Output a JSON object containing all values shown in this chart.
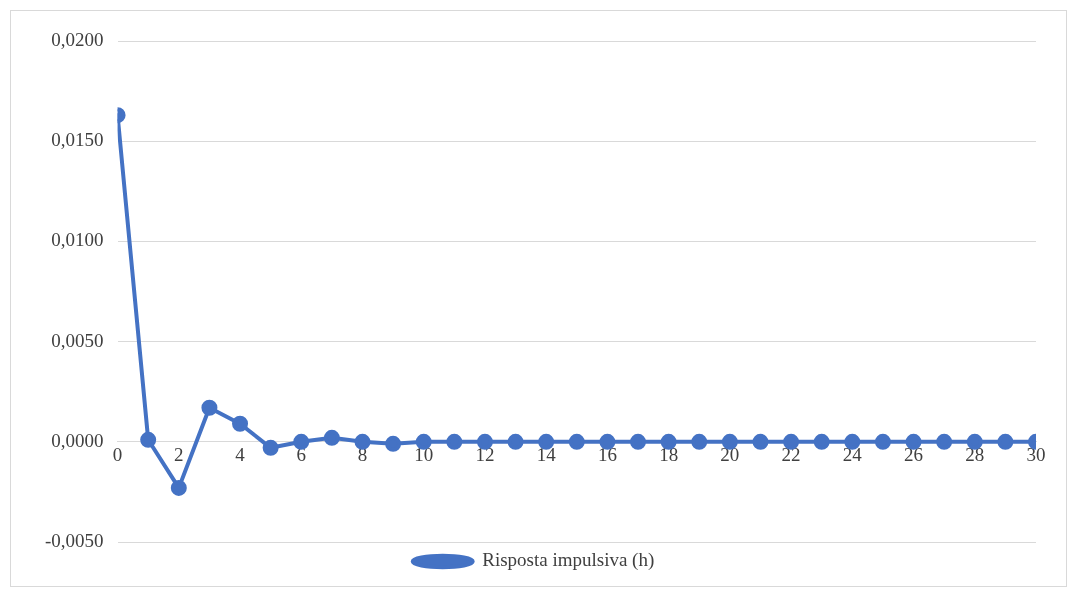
{
  "chart_data": {
    "type": "line",
    "x": [
      0,
      1,
      2,
      3,
      4,
      5,
      6,
      7,
      8,
      9,
      10,
      11,
      12,
      13,
      14,
      15,
      16,
      17,
      18,
      19,
      20,
      21,
      22,
      23,
      24,
      25,
      26,
      27,
      28,
      29,
      30
    ],
    "series": [
      {
        "name": "Risposta impulsiva (h)",
        "color": "#4472c4",
        "values": [
          0.0163,
          0.0001,
          -0.0023,
          0.0017,
          0.0009,
          -0.0003,
          0.0,
          0.0002,
          0.0,
          -0.0001,
          0,
          0,
          0,
          0,
          0,
          0,
          0,
          0,
          0,
          0,
          0,
          0,
          0,
          0,
          0,
          0,
          0,
          0,
          0,
          0,
          0
        ]
      }
    ],
    "xlim": [
      0,
      30
    ],
    "xticks": [
      0,
      2,
      4,
      6,
      8,
      10,
      12,
      14,
      16,
      18,
      20,
      22,
      24,
      26,
      28,
      30
    ],
    "ylim": [
      -0.005,
      0.02
    ],
    "yticks": [
      {
        "value": -0.005,
        "label": "-0,0050"
      },
      {
        "value": 0,
        "label": "0,0000"
      },
      {
        "value": 0.005,
        "label": "0,0050"
      },
      {
        "value": 0.01,
        "label": "0,0100"
      },
      {
        "value": 0.015,
        "label": "0,0150"
      },
      {
        "value": 0.02,
        "label": "0,0200"
      }
    ],
    "grid": "y",
    "legend": "bottom",
    "marker": "circle",
    "line_style": "solid"
  }
}
